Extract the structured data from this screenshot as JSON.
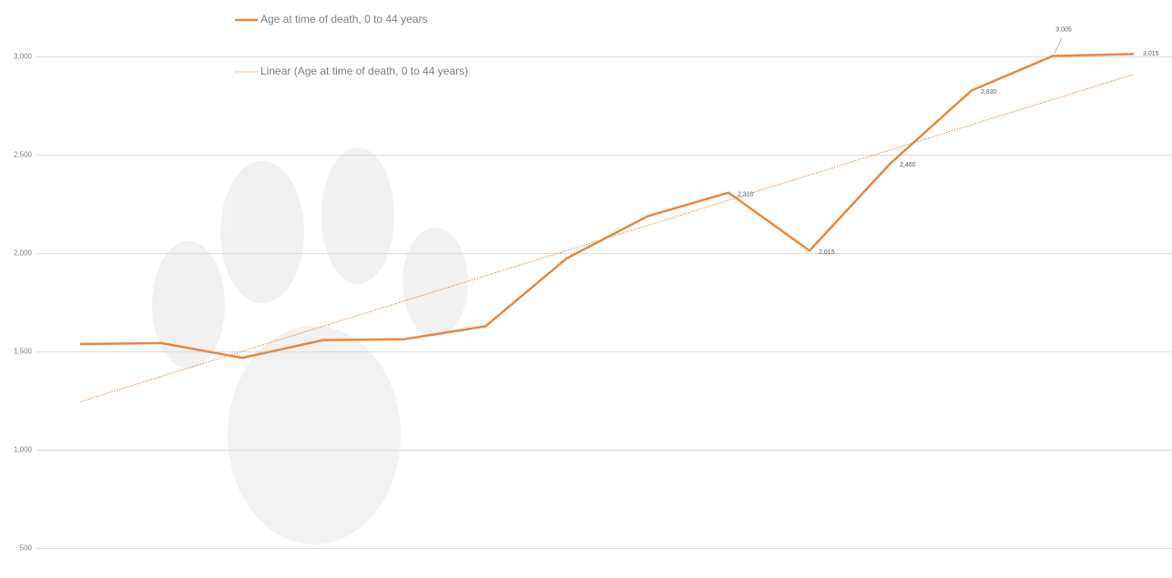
{
  "chart_data": {
    "type": "line",
    "categories": [
      null,
      null,
      null,
      null,
      null,
      null,
      null,
      null,
      null,
      null,
      null,
      null,
      null,
      null
    ],
    "series": [
      {
        "name": "Age at time of death, 0 to 44 years",
        "color": "#e8873f",
        "values": [
          1540,
          1545,
          1470,
          1560,
          1565,
          1630,
          1975,
          2190,
          2310,
          2015,
          2460,
          2830,
          3005,
          3015
        ],
        "value_labels": [
          null,
          null,
          null,
          null,
          null,
          null,
          null,
          null,
          "2,310",
          "2,015",
          "2,460",
          "2,830",
          "3,005",
          "3,015"
        ]
      }
    ],
    "trendline": {
      "type": "linear",
      "name": "Linear (Age at time of death, 0 to 44 years)",
      "color": "#e8873f"
    },
    "ylim": [
      350,
      3290
    ],
    "yticks": [
      500,
      {
        "value": 1000,
        "label": "1,000"
      },
      {
        "value": 1500,
        "label": "1,500"
      },
      {
        "value": 2000,
        "label": "2,000"
      },
      {
        "value": 2500,
        "label": "2,500"
      },
      {
        "value": 3000,
        "label": "3,000"
      }
    ],
    "grid": true
  }
}
